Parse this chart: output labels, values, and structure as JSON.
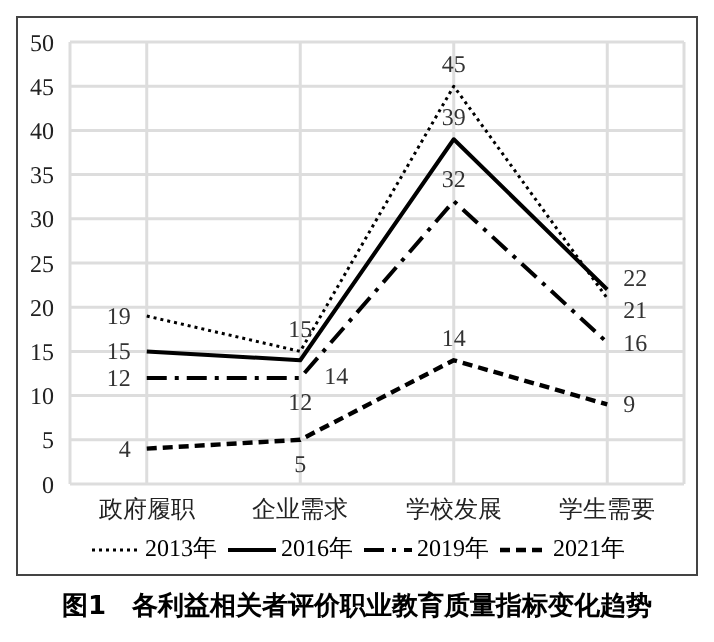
{
  "chart_data": {
    "type": "line",
    "title": "图1　各利益相关者评价职业教育质量指标变化趋势",
    "categories": [
      "政府履职",
      "企业需求",
      "学校发展",
      "学生需要"
    ],
    "series": [
      {
        "name": "2013年",
        "color": "#000000",
        "line_style": "dotted",
        "values": [
          19,
          15,
          45,
          21
        ]
      },
      {
        "name": "2016年",
        "color": "#000000",
        "line_style": "solid",
        "values": [
          15,
          14,
          39,
          22
        ]
      },
      {
        "name": "2019年",
        "color": "#000000",
        "line_style": "dashdot",
        "values": [
          12,
          12,
          32,
          16
        ]
      },
      {
        "name": "2021年",
        "color": "#000000",
        "line_style": "dashed",
        "values": [
          4,
          5,
          14,
          9
        ]
      }
    ],
    "ylim": [
      0,
      50
    ],
    "yticks": [
      0,
      5,
      10,
      15,
      20,
      25,
      30,
      35,
      40,
      45,
      50
    ],
    "grid": true,
    "legend": "bottom",
    "data_labels": true,
    "marker": "none"
  }
}
